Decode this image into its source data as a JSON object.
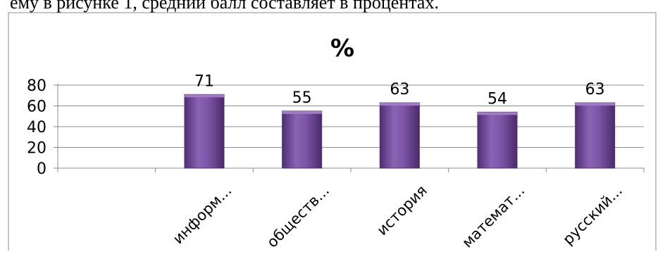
{
  "header_text": "ему в рисунке 1, средний балл составляет в процентах.",
  "chart_data": {
    "type": "bar",
    "title": "%",
    "categories": [
      "",
      "информ...",
      "обществ...",
      "история",
      "математ...",
      "русский..."
    ],
    "values": [
      null,
      71,
      55,
      63,
      54,
      63
    ],
    "ylim": [
      0,
      80
    ],
    "yticks": [
      0,
      20,
      40,
      60,
      80
    ],
    "grid": true,
    "legend": "none",
    "bar_color": "#7d55a6",
    "bar_color_dark": "#4f2e73",
    "bar_color_light": "#a07cc7"
  }
}
